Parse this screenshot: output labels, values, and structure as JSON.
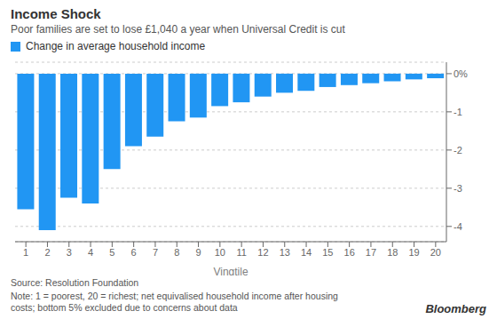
{
  "chart_data": {
    "type": "bar",
    "title": "Income Shock",
    "subtitle": "Poor families are set to lose £1,040 a year when Universal Credit is cut",
    "xlabel": "Vingtile",
    "categories": [
      1,
      2,
      3,
      4,
      5,
      6,
      7,
      8,
      9,
      10,
      11,
      12,
      13,
      14,
      15,
      16,
      17,
      18,
      19,
      20
    ],
    "series": [
      {
        "name": "Change in average household income",
        "color": "#2196F3",
        "values": [
          -3.55,
          -4.1,
          -3.25,
          -3.4,
          -2.5,
          -1.9,
          -1.65,
          -1.25,
          -1.15,
          -0.85,
          -0.75,
          -0.6,
          -0.5,
          -0.45,
          -0.35,
          -0.3,
          -0.25,
          -0.2,
          -0.15,
          -0.12
        ]
      }
    ],
    "ylim": [
      -4.4,
      0.3
    ],
    "yticks": [
      {
        "value": 0,
        "label": "0%"
      },
      -1,
      -2,
      -3,
      -4
    ],
    "grid": true,
    "legend": "upper left",
    "annotations": [
      "Source:  Resolution Foundation",
      "Note: 1 = poorest, 20 = richest; net equivalised household income after housing\ncosts; bottom 5% excluded due to concerns about data",
      "Bloomberg"
    ]
  }
}
